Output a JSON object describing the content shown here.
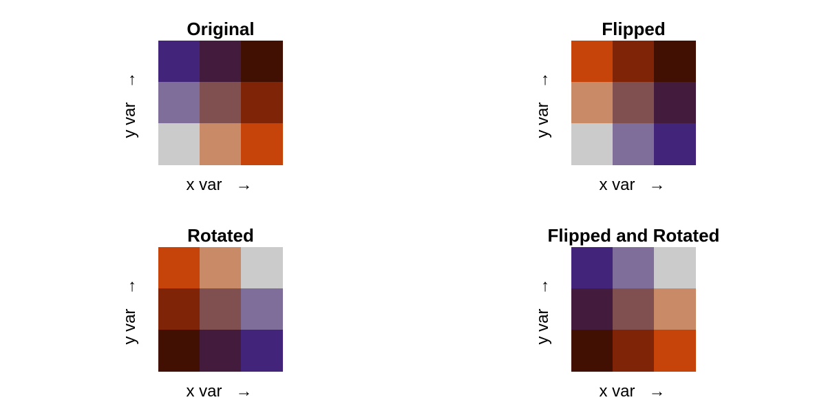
{
  "chart_data": {
    "type": "heatmap",
    "description_type": "bivariate color key",
    "palette": {
      "1-1": "#cbcbcb",
      "2-1": "#c98b67",
      "3-1": "#c64409",
      "1-2": "#806e9a",
      "2-2": "#804f50",
      "3-2": "#7f2406",
      "1-3": "#42247a",
      "2-3": "#421b3d",
      "3-3": "#420f03"
    },
    "panels": [
      {
        "title": "Original",
        "xlabel": "x var",
        "ylabel": "y var",
        "x_arrow": "→",
        "y_arrow": "→",
        "grid": [
          [
            "1-3",
            "2-3",
            "3-3"
          ],
          [
            "1-2",
            "2-2",
            "3-2"
          ],
          [
            "1-1",
            "2-1",
            "3-1"
          ]
        ]
      },
      {
        "title": "Flipped",
        "xlabel": "x var",
        "ylabel": "y var",
        "x_arrow": "→",
        "y_arrow": "→",
        "grid": [
          [
            "3-1",
            "3-2",
            "3-3"
          ],
          [
            "2-1",
            "2-2",
            "2-3"
          ],
          [
            "1-1",
            "1-2",
            "1-3"
          ]
        ]
      },
      {
        "title": "Rotated",
        "xlabel": "x var",
        "ylabel": "y var",
        "x_arrow": "→",
        "y_arrow": "→",
        "grid": [
          [
            "3-1",
            "2-1",
            "1-1"
          ],
          [
            "3-2",
            "2-2",
            "1-2"
          ],
          [
            "3-3",
            "2-3",
            "1-3"
          ]
        ]
      },
      {
        "title": "Flipped and Rotated",
        "xlabel": "x var",
        "ylabel": "y var",
        "x_arrow": "→",
        "y_arrow": "→",
        "grid": [
          [
            "1-3",
            "1-2",
            "1-1"
          ],
          [
            "2-3",
            "2-2",
            "2-1"
          ],
          [
            "3-3",
            "3-2",
            "3-1"
          ]
        ]
      }
    ]
  }
}
